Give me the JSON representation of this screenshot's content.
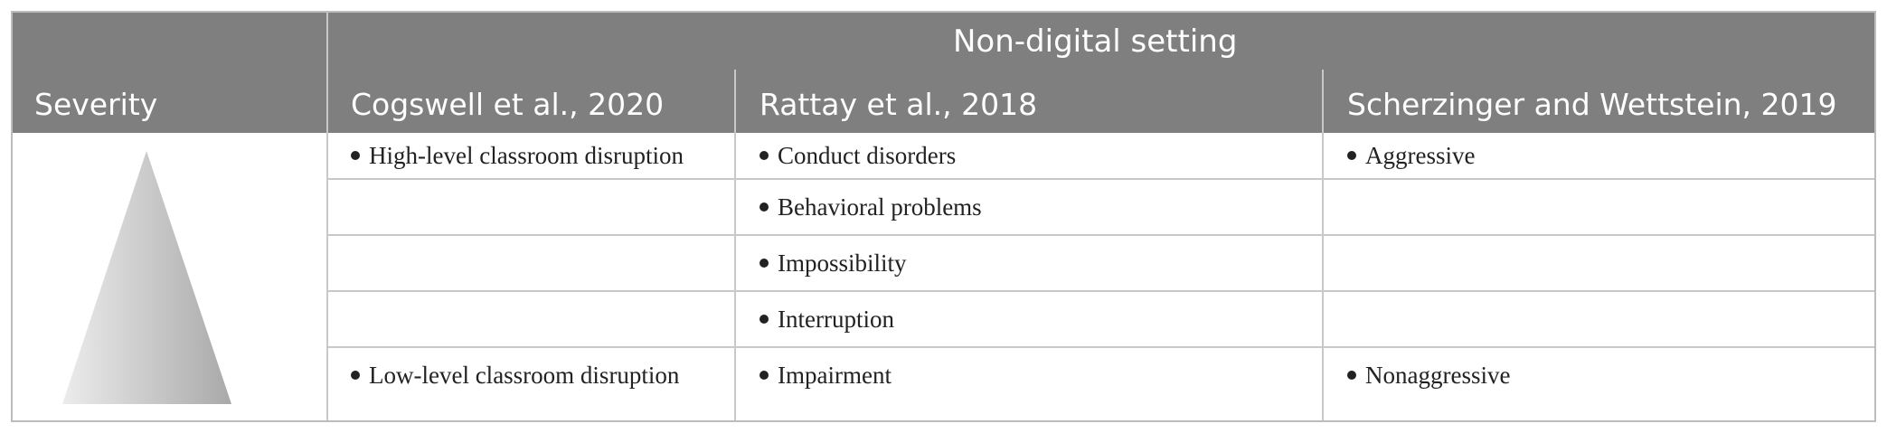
{
  "table": {
    "group_header": "Non-digital setting",
    "columns": [
      "Severity",
      "Cogswell et al., 2020",
      "Rattay et al., 2018",
      "Scherzinger and Wettstein, 2019"
    ],
    "rows": [
      {
        "cogswell": "High-level classroom disruption",
        "rattay": "Conduct disorders",
        "scherzinger": "Aggressive"
      },
      {
        "cogswell": "",
        "rattay": "Behavioral problems",
        "scherzinger": ""
      },
      {
        "cogswell": "",
        "rattay": "Impossibility",
        "scherzinger": ""
      },
      {
        "cogswell": "",
        "rattay": "Interruption",
        "scherzinger": ""
      },
      {
        "cogswell": "Low-level classroom disruption",
        "rattay": "Impairment",
        "scherzinger": "Nonaggressive"
      }
    ]
  },
  "severity_graphic": {
    "shape": "triangle",
    "gradient_light": "#ececec",
    "gradient_dark": "#a9a9a9"
  },
  "colors": {
    "header_bg": "#7f7f7f",
    "header_text": "#ffffff",
    "grid": "#c8c8c8"
  }
}
